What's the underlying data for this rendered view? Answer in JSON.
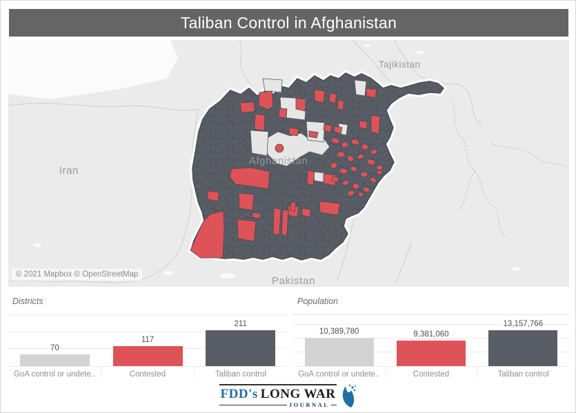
{
  "header": {
    "title": "Taliban Control in Afghanistan"
  },
  "map": {
    "country_labels": {
      "tajikistan": "Tajikistan",
      "iran": "Iran",
      "afghanistan": "Afghanistan",
      "pakistan": "Pakistan"
    },
    "attribution": "© 2021 Mapbox © OpenStreetMap",
    "colors": {
      "taliban_control": "#585d66",
      "contested": "#dd5357",
      "goa_control": "#e6e6e6",
      "basemap": "#ebebeb",
      "district_border": "#474b54",
      "label_gray": "#9a9a9a"
    }
  },
  "chart_data": [
    {
      "type": "bar",
      "title": "Districts",
      "categories": [
        "GoA control or undete..",
        "Contested",
        "Taliban control"
      ],
      "values": [
        70,
        117,
        211
      ],
      "value_labels": [
        "70",
        "117",
        "211"
      ],
      "colors": [
        "#d3d3d3",
        "#dd5357",
        "#585d66"
      ],
      "ylim": [
        0,
        300
      ],
      "grid_values": [
        100,
        200,
        300
      ],
      "xlabel": "",
      "ylabel": "",
      "legend": "none"
    },
    {
      "type": "bar",
      "title": "Population",
      "categories": [
        "GoA control or undete..",
        "Contested",
        "Taliban control"
      ],
      "values": [
        10389780,
        9381060,
        13157766
      ],
      "value_labels": [
        "10,389,780",
        "9,381,060",
        "13,157,766"
      ],
      "colors": [
        "#d3d3d3",
        "#dd5357",
        "#585d66"
      ],
      "ylim": [
        0,
        18600000
      ],
      "grid_values": [
        5000000,
        10000000,
        15000000
      ],
      "xlabel": "",
      "ylabel": "",
      "legend": "none"
    }
  ],
  "footer": {
    "brand_fdds": "FDD's",
    "brand_longwar": "LONG WAR",
    "brand_journal": "JOURNAL",
    "icon_color": "#1f6fa5"
  }
}
